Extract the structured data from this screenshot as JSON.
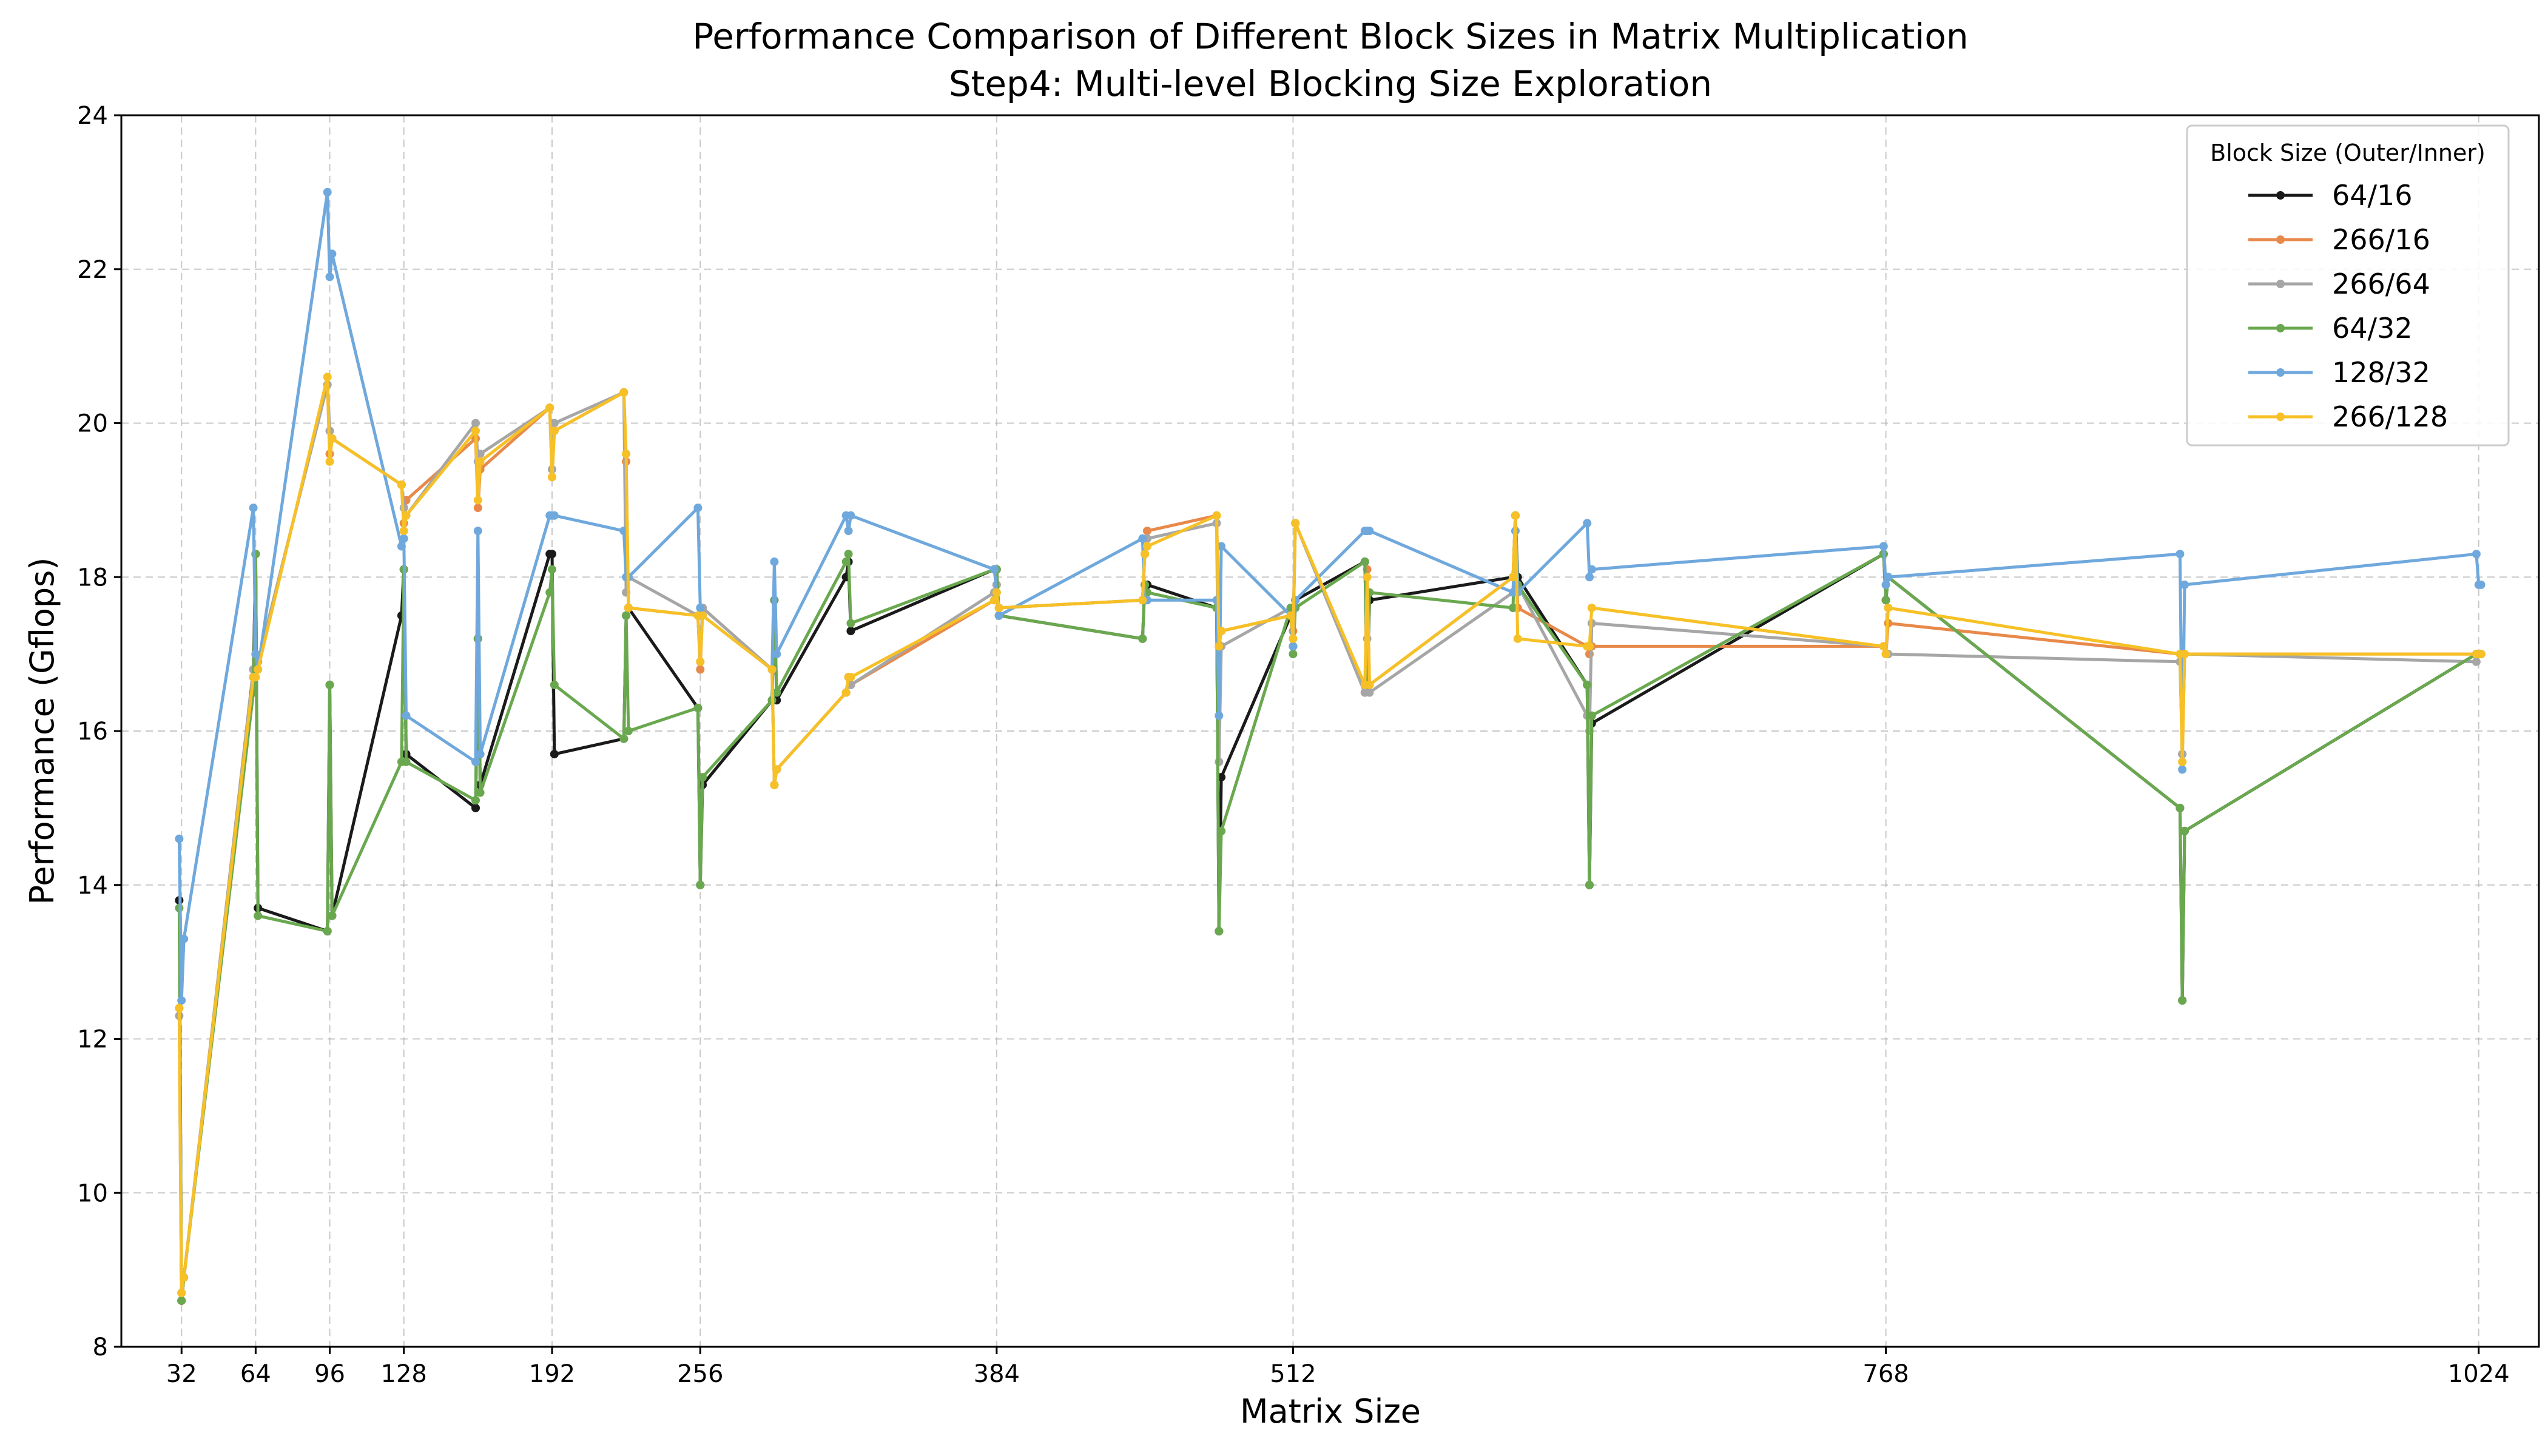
{
  "chart_data": {
    "type": "line",
    "title": "Performance Comparison of Different Block Sizes in Matrix Multiplication",
    "subtitle": "Step4: Multi-level Blocking Size Exploration",
    "xlabel": "Matrix Size",
    "ylabel": "Performance (Gflops)",
    "xlim": [
      6,
      1050
    ],
    "ylim": [
      8,
      24
    ],
    "xticks": [
      32,
      64,
      96,
      128,
      192,
      256,
      384,
      512,
      768,
      1024
    ],
    "yticks": [
      8,
      10,
      12,
      14,
      16,
      18,
      20,
      22,
      24
    ],
    "grid": true,
    "grid_style": "dashed",
    "legend": {
      "title": "Block Size (Outer/Inner)",
      "position": "top-right"
    },
    "x": [
      31,
      32,
      33,
      63,
      64,
      65,
      95,
      96,
      97,
      127,
      128,
      129,
      159,
      160,
      161,
      191,
      192,
      193,
      223,
      224,
      225,
      255,
      256,
      257,
      287,
      288,
      289,
      319,
      320,
      321,
      383,
      384,
      385,
      447,
      448,
      449,
      479,
      480,
      481,
      511,
      512,
      513,
      543,
      544,
      545,
      607,
      608,
      609,
      639,
      640,
      641,
      767,
      768,
      769,
      895,
      896,
      897,
      1023,
      1024,
      1025
    ],
    "series": [
      {
        "name": "64/16",
        "color": "#1a1a1a",
        "values": [
          13.8,
          8.6,
          8.9,
          16.7,
          18.3,
          13.7,
          13.4,
          16.6,
          13.6,
          17.5,
          18.1,
          15.7,
          15.0,
          17.2,
          15.3,
          18.3,
          18.3,
          15.7,
          15.9,
          17.5,
          17.6,
          16.3,
          14.0,
          15.3,
          16.4,
          17.7,
          16.4,
          18.0,
          18.2,
          17.3,
          18.1,
          18.1,
          17.5,
          17.2,
          17.9,
          17.9,
          17.6,
          13.4,
          15.4,
          17.5,
          17.1,
          17.7,
          18.2,
          16.6,
          17.7,
          18.0,
          18.8,
          18.0,
          16.6,
          14.0,
          16.1,
          18.3,
          17.7,
          18.0,
          15.0,
          12.5,
          14.7,
          17.0,
          17.0,
          17.0
        ]
      },
      {
        "name": "266/16",
        "color": "#e8894a",
        "values": [
          12.4,
          8.6,
          8.9,
          16.8,
          17.0,
          16.9,
          20.5,
          19.6,
          19.8,
          19.2,
          18.7,
          19.0,
          19.8,
          18.9,
          19.4,
          20.2,
          19.3,
          19.9,
          20.4,
          19.5,
          17.6,
          17.5,
          16.8,
          17.6,
          16.8,
          15.3,
          15.5,
          16.5,
          16.7,
          16.6,
          17.7,
          17.9,
          17.6,
          17.7,
          18.3,
          18.6,
          18.8,
          17.1,
          17.3,
          17.5,
          17.3,
          18.7,
          16.5,
          18.1,
          16.6,
          18.0,
          18.8,
          17.6,
          17.1,
          17.0,
          17.1,
          17.1,
          17.0,
          17.4,
          17.0,
          15.7,
          17.0,
          17.0,
          17.0,
          17.0
        ]
      },
      {
        "name": "266/64",
        "color": "#a6a6a6",
        "values": [
          12.3,
          8.7,
          8.9,
          16.8,
          17.0,
          16.9,
          20.5,
          19.9,
          19.8,
          19.2,
          18.9,
          18.8,
          20.0,
          19.5,
          19.6,
          20.2,
          19.4,
          20.0,
          20.4,
          17.8,
          18.0,
          17.5,
          16.9,
          17.6,
          16.8,
          15.3,
          15.5,
          16.5,
          16.7,
          16.6,
          17.8,
          17.9,
          17.6,
          17.7,
          18.3,
          18.5,
          18.7,
          15.6,
          17.1,
          17.6,
          17.2,
          18.7,
          16.5,
          17.2,
          16.5,
          17.8,
          18.8,
          17.9,
          16.2,
          16.0,
          17.4,
          17.1,
          17.0,
          17.0,
          16.9,
          15.7,
          17.0,
          16.9,
          17.0,
          17.0
        ]
      },
      {
        "name": "64/32",
        "color": "#6aa84f",
        "values": [
          13.7,
          8.6,
          8.9,
          16.5,
          18.3,
          13.6,
          13.4,
          16.6,
          13.6,
          15.6,
          18.1,
          15.6,
          15.1,
          17.2,
          15.2,
          17.8,
          18.1,
          16.6,
          15.9,
          17.5,
          16.0,
          16.3,
          14.0,
          15.4,
          16.4,
          17.7,
          16.5,
          18.2,
          18.3,
          17.4,
          18.1,
          18.1,
          17.5,
          17.2,
          17.9,
          17.8,
          17.6,
          13.4,
          14.7,
          17.6,
          17.0,
          17.6,
          18.2,
          16.6,
          17.8,
          17.6,
          18.8,
          17.9,
          16.6,
          14.0,
          16.2,
          18.3,
          17.7,
          18.0,
          15.0,
          12.5,
          14.7,
          17.0,
          17.0,
          17.0
        ]
      },
      {
        "name": "128/32",
        "color": "#6fa8dc",
        "values": [
          14.6,
          12.5,
          13.3,
          18.9,
          17.0,
          16.8,
          23.0,
          21.9,
          22.2,
          18.4,
          18.5,
          16.2,
          15.6,
          18.6,
          15.7,
          18.8,
          18.8,
          18.8,
          18.6,
          18.0,
          18.0,
          18.9,
          17.6,
          17.5,
          16.8,
          18.2,
          17.0,
          18.8,
          18.6,
          18.8,
          18.1,
          17.8,
          17.5,
          18.5,
          17.7,
          17.7,
          17.7,
          16.2,
          18.4,
          17.5,
          17.1,
          17.7,
          18.6,
          18.6,
          18.6,
          17.8,
          18.6,
          17.8,
          18.7,
          18.0,
          18.1,
          18.4,
          17.9,
          18.0,
          18.3,
          15.5,
          17.9,
          18.3,
          17.9,
          17.9
        ]
      },
      {
        "name": "266/128",
        "color": "#f6c026",
        "values": [
          12.4,
          8.7,
          8.9,
          16.7,
          16.7,
          16.8,
          20.6,
          19.5,
          19.8,
          19.2,
          18.6,
          18.8,
          19.9,
          19.0,
          19.5,
          20.2,
          19.3,
          19.9,
          20.4,
          19.6,
          17.6,
          17.5,
          16.9,
          17.5,
          16.8,
          15.3,
          15.5,
          16.5,
          16.7,
          16.7,
          17.7,
          17.8,
          17.6,
          17.7,
          18.3,
          18.4,
          18.8,
          17.1,
          17.3,
          17.5,
          17.2,
          18.7,
          16.6,
          18.0,
          16.6,
          18.0,
          18.8,
          17.2,
          17.1,
          17.1,
          17.6,
          17.1,
          17.0,
          17.6,
          17.0,
          15.6,
          17.0,
          17.0,
          17.0,
          17.0
        ]
      }
    ]
  }
}
